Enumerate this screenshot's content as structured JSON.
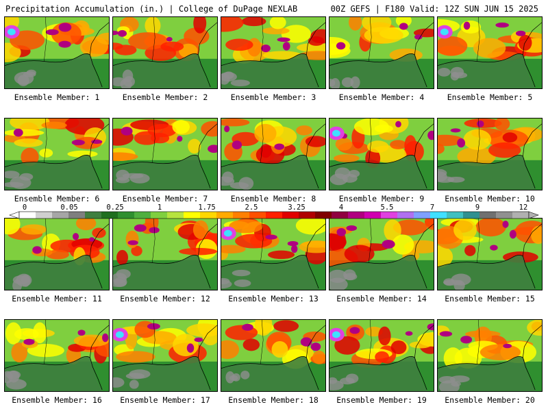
{
  "header": {
    "left": "Precipitation Accumulation (in.) | College of DuPage NEXLAB",
    "right": "00Z GEFS | F180 Valid: 12Z SUN JUN 15 2025"
  },
  "colorbar": {
    "ticks": [
      "0",
      "0.05",
      "0.25",
      "1",
      "1.75",
      "2.5",
      "3.25",
      "4",
      "5.5",
      "7",
      "9",
      "12"
    ],
    "colors": [
      "#ffffff",
      "#cfcfcf",
      "#a6a6a6",
      "#7f7f7f",
      "#3f7f3f",
      "#1f6f1f",
      "#2f8f2f",
      "#4faf3f",
      "#7fcf3f",
      "#b7e33f",
      "#ffff00",
      "#ffd700",
      "#ffaa00",
      "#ff7f00",
      "#ff5000",
      "#ff2000",
      "#e00000",
      "#b00000",
      "#800000",
      "#900040",
      "#b00080",
      "#d000b0",
      "#e040e0",
      "#b070f0",
      "#7fa0ff",
      "#40e0ff",
      "#40c0c0",
      "#309090",
      "#707070",
      "#909090",
      "#b0b0b0"
    ]
  },
  "members": [
    {
      "label": "Ensemble Member: 1"
    },
    {
      "label": "Ensemble Member: 2"
    },
    {
      "label": "Ensemble Member: 3"
    },
    {
      "label": "Ensemble Member: 4"
    },
    {
      "label": "Ensemble Member: 5"
    },
    {
      "label": "Ensemble Member: 6"
    },
    {
      "label": "Ensemble Member: 7"
    },
    {
      "label": "Ensemble Member: 8"
    },
    {
      "label": "Ensemble Member: 9"
    },
    {
      "label": "Ensemble Member: 10"
    },
    {
      "label": "Ensemble Member: 11"
    },
    {
      "label": "Ensemble Member: 12"
    },
    {
      "label": "Ensemble Member: 13"
    },
    {
      "label": "Ensemble Member: 14"
    },
    {
      "label": "Ensemble Member: 15"
    },
    {
      "label": "Ensemble Member: 16"
    },
    {
      "label": "Ensemble Member: 17"
    },
    {
      "label": "Ensemble Member: 18"
    },
    {
      "label": "Ensemble Member: 19"
    },
    {
      "label": "Ensemble Member: 20"
    }
  ]
}
